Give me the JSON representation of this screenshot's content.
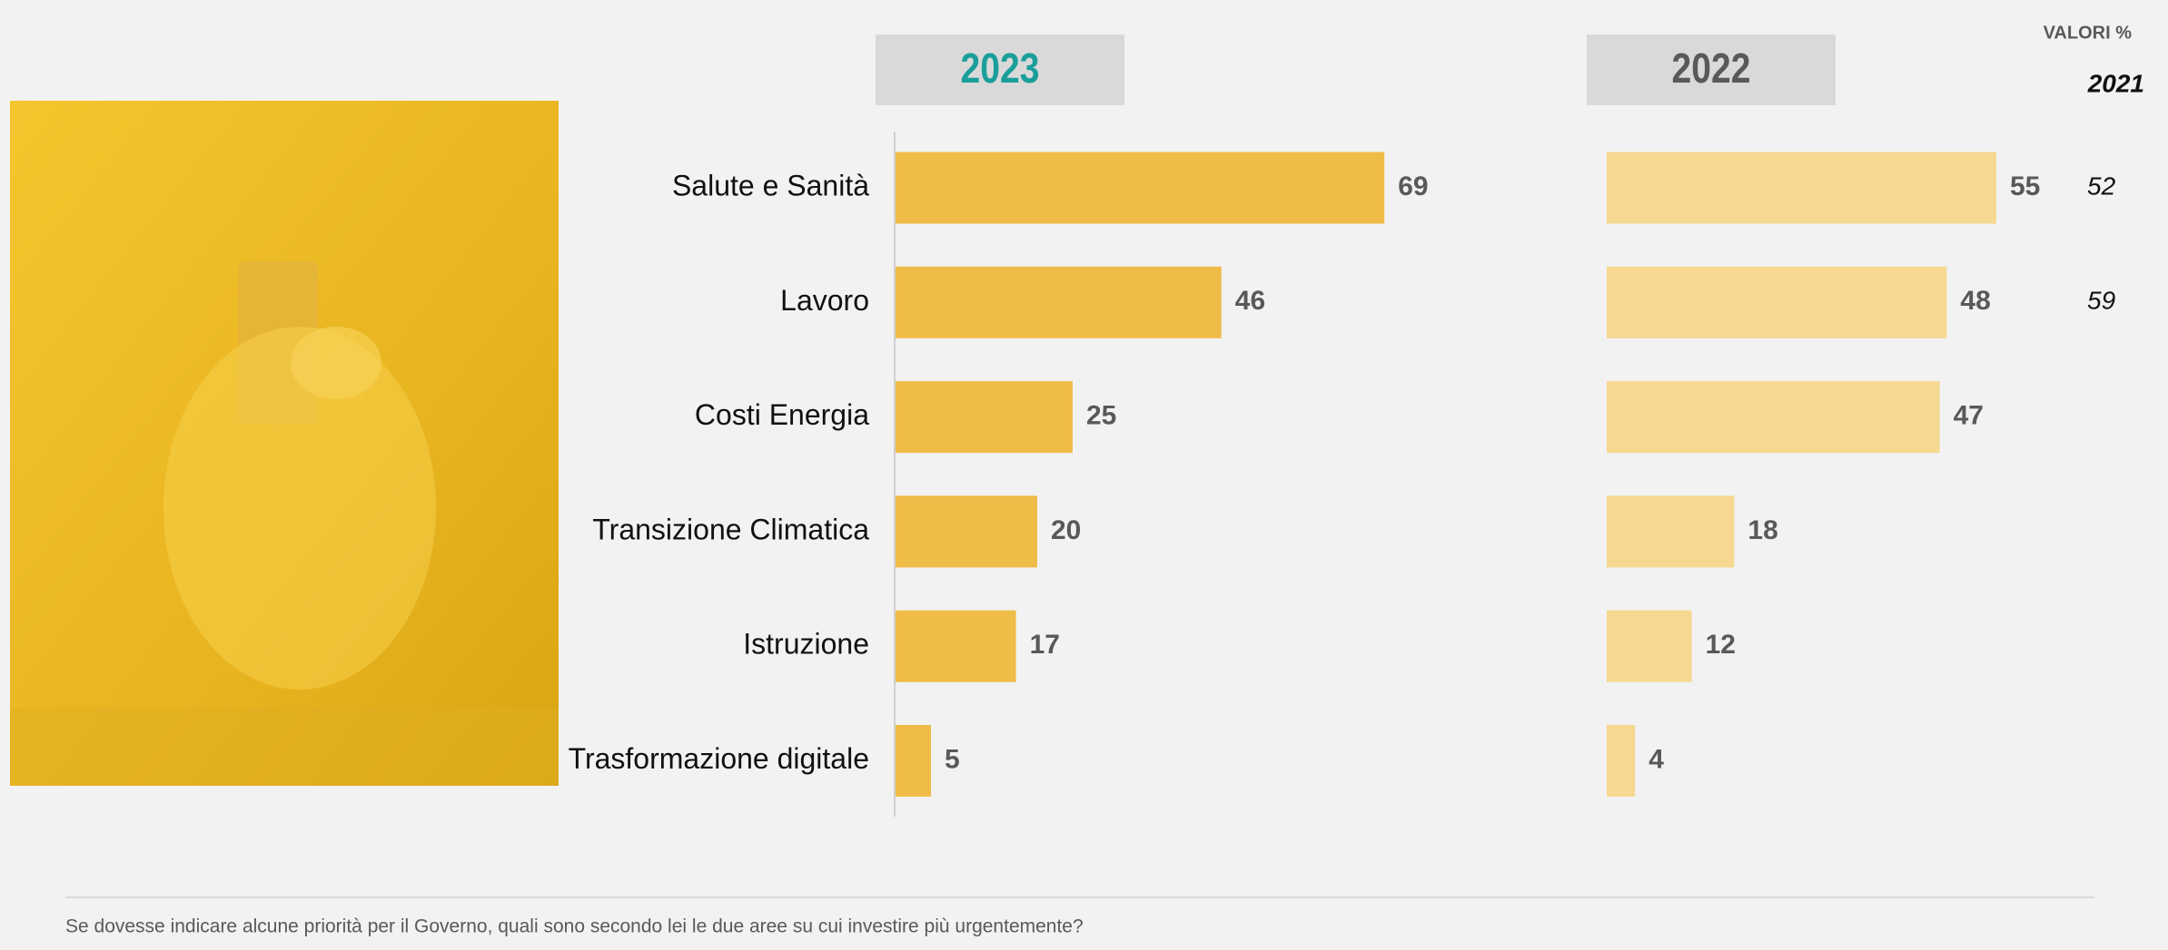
{
  "chart_data": {
    "type": "bar",
    "header": "VALORI %",
    "footnote": "Se dovesse indicare alcune priorità per il Governo, quali sono secondo lei le due aree su cui investire più urgentemente?",
    "categories": [
      "Salute e Sanità",
      "Lavoro",
      "Costi Energia",
      "Transizione Climatica",
      "Istruzione",
      "Trasformazione digitale"
    ],
    "series": [
      {
        "name": "2023",
        "color": "#f0bc48",
        "title_color": "#1a9e9a",
        "values": [
          69,
          46,
          25,
          20,
          17,
          5
        ]
      },
      {
        "name": "2022",
        "color": "#f6d891",
        "title_color": "#595959",
        "values": [
          55,
          48,
          47,
          18,
          12,
          4
        ]
      },
      {
        "name": "2021",
        "display": "text",
        "values": [
          52,
          59,
          null,
          null,
          null,
          null
        ]
      }
    ]
  }
}
